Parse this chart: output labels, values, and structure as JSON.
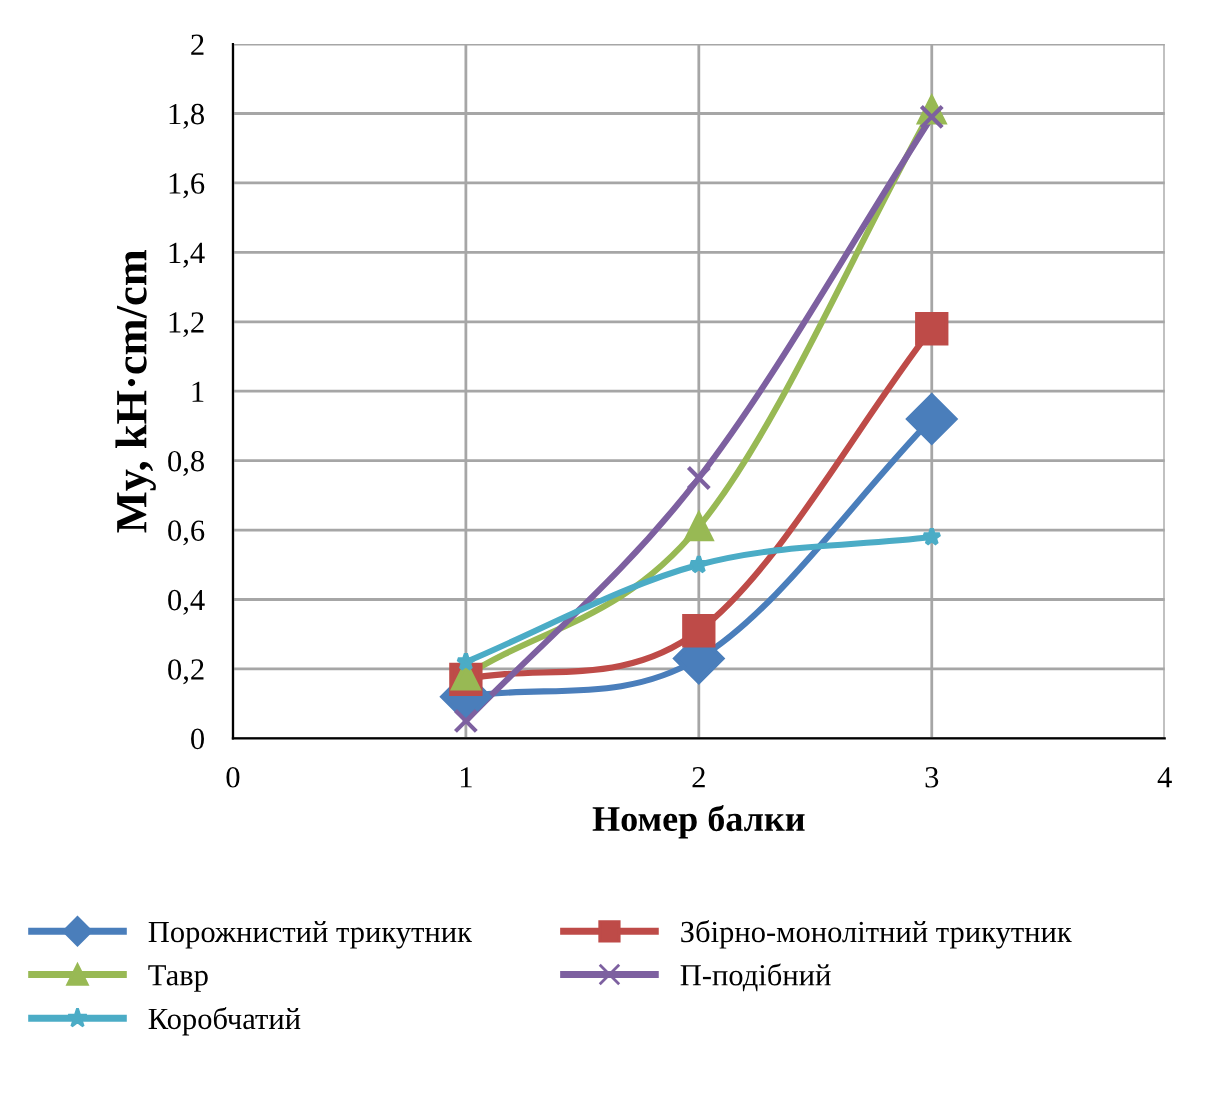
{
  "chart_data": {
    "type": "line",
    "xlabel": "Номер балки",
    "ylabel": "My, kH·cm/cm",
    "x": [
      1,
      2,
      3
    ],
    "xlim": [
      0,
      4
    ],
    "xticks": [
      0,
      1,
      2,
      3,
      4
    ],
    "ylim": [
      0,
      2
    ],
    "yticks": [
      0,
      {
        "value": 0.2,
        "label": "0,2"
      },
      {
        "value": 0.4,
        "label": "0,4"
      },
      {
        "value": 0.6,
        "label": "0,6"
      },
      {
        "value": 0.8,
        "label": "0,8"
      },
      1,
      {
        "value": 1.2,
        "label": "1,2"
      },
      {
        "value": 1.4,
        "label": "1,4"
      },
      {
        "value": 1.6,
        "label": "1,6"
      },
      {
        "value": 1.8,
        "label": "1,8"
      },
      2
    ],
    "grid": true,
    "legend": "bottom",
    "line_style": "solid",
    "series": [
      {
        "name": "Порожнистий трикутник",
        "color": "#4a7ebb",
        "marker": "diamond",
        "values": [
          0.12,
          0.23,
          0.92
        ]
      },
      {
        "name": "Збірно-монолітний трикутник",
        "color": "#be4b48",
        "marker": "square",
        "values": [
          0.17,
          0.31,
          1.18
        ]
      },
      {
        "name": "Тавр",
        "color": "#98b954",
        "marker": "triangle",
        "values": [
          0.18,
          0.61,
          1.81
        ]
      },
      {
        "name": "П-подібний",
        "color": "#7d60a0",
        "marker": "cross",
        "values": [
          0.05,
          0.75,
          1.79
        ]
      },
      {
        "name": "Коробчатий",
        "color": "#4bacc6",
        "marker": "star",
        "values": [
          0.22,
          0.5,
          0.58
        ]
      }
    ]
  }
}
